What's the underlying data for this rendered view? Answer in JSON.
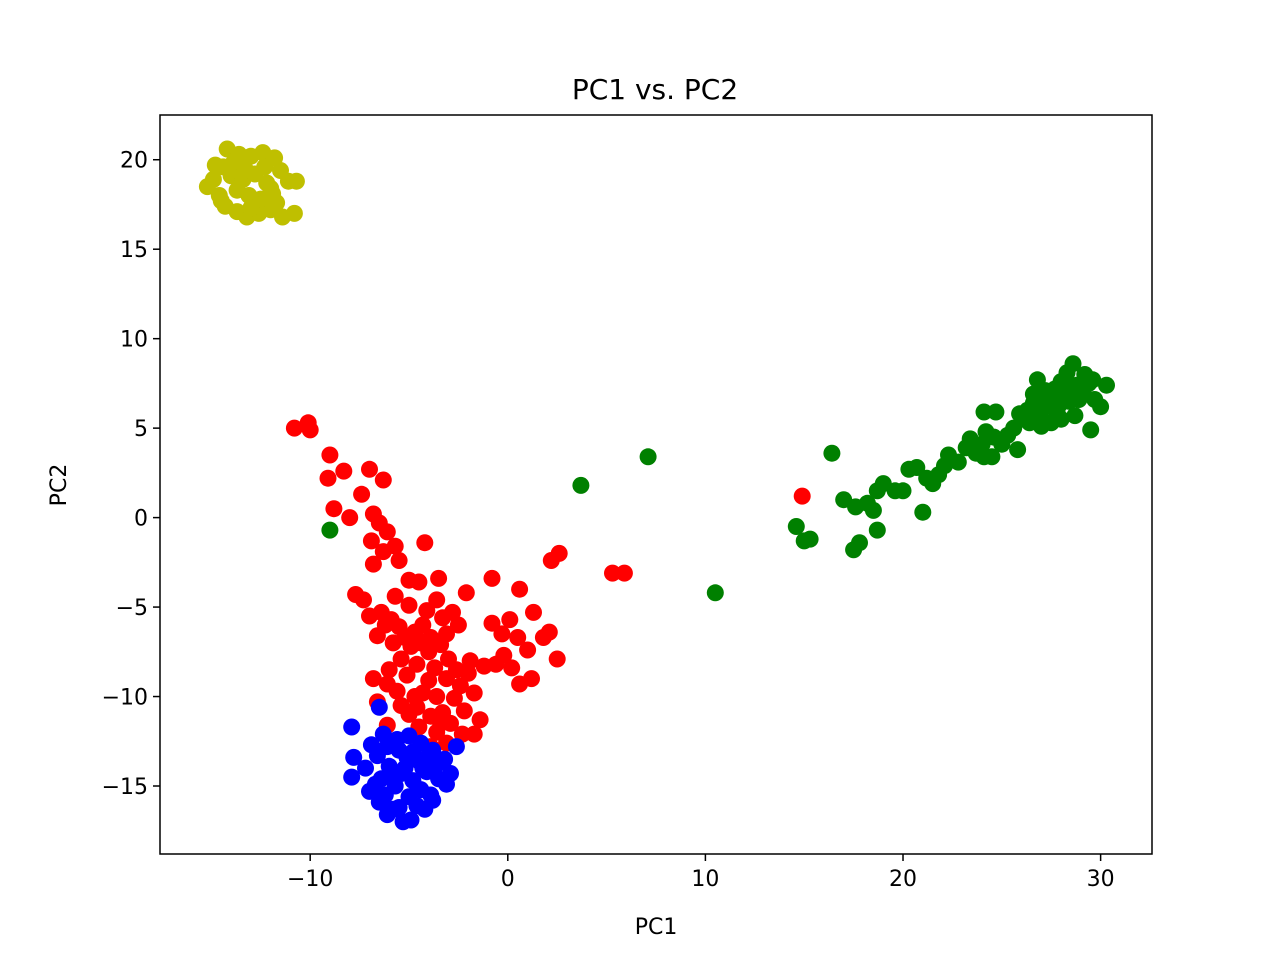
{
  "chart_data": {
    "type": "scatter",
    "title": "PC1 vs. PC2",
    "xlabel": "PC1",
    "ylabel": "PC2",
    "xlim": [
      -17.6,
      32.6
    ],
    "ylim": [
      -18.8,
      22.5
    ],
    "xticks": [
      -10,
      0,
      10,
      20,
      30
    ],
    "yticks": [
      -15,
      -10,
      -5,
      0,
      5,
      10,
      15,
      20
    ],
    "xtick_labels": [
      "−10",
      "0",
      "10",
      "20",
      "30"
    ],
    "ytick_labels": [
      "−15",
      "−10",
      "−5",
      "0",
      "5",
      "10",
      "15",
      "20"
    ],
    "grid": false,
    "series": [
      {
        "color": "#ff0000",
        "points": [
          [
            -10.8,
            5.0
          ],
          [
            -10.1,
            5.3
          ],
          [
            -10.0,
            4.9
          ],
          [
            -9.0,
            3.5
          ],
          [
            -9.1,
            2.2
          ],
          [
            -8.8,
            0.5
          ],
          [
            -8.3,
            2.6
          ],
          [
            -8.0,
            0.0
          ],
          [
            -7.4,
            1.3
          ],
          [
            -7.0,
            2.7
          ],
          [
            -6.3,
            2.1
          ],
          [
            -6.8,
            0.2
          ],
          [
            -6.5,
            -0.3
          ],
          [
            -6.9,
            -1.3
          ],
          [
            -6.1,
            -0.8
          ],
          [
            -5.7,
            -1.6
          ],
          [
            -6.3,
            -1.9
          ],
          [
            -5.5,
            -2.4
          ],
          [
            -6.8,
            -2.6
          ],
          [
            -4.2,
            -1.4
          ],
          [
            -5.0,
            -3.5
          ],
          [
            -4.5,
            -3.6
          ],
          [
            -3.5,
            -3.4
          ],
          [
            -3.6,
            -4.6
          ],
          [
            -2.1,
            -4.2
          ],
          [
            -7.7,
            -4.3
          ],
          [
            -7.3,
            -4.6
          ],
          [
            -7.0,
            -5.5
          ],
          [
            -6.4,
            -5.3
          ],
          [
            -5.7,
            -4.4
          ],
          [
            -5.0,
            -4.9
          ],
          [
            -4.1,
            -5.2
          ],
          [
            -3.3,
            -5.6
          ],
          [
            -2.8,
            -5.3
          ],
          [
            -6.2,
            -6.0
          ],
          [
            -5.5,
            -6.1
          ],
          [
            -4.7,
            -6.4
          ],
          [
            -4.3,
            -6.0
          ],
          [
            -3.9,
            -6.7
          ],
          [
            -3.1,
            -6.5
          ],
          [
            -2.5,
            -6.0
          ],
          [
            -6.6,
            -6.6
          ],
          [
            -5.8,
            -7.0
          ],
          [
            -4.9,
            -7.2
          ],
          [
            -4.0,
            -7.5
          ],
          [
            -3.4,
            -7.1
          ],
          [
            -5.4,
            -7.9
          ],
          [
            -4.6,
            -8.2
          ],
          [
            -3.7,
            -8.4
          ],
          [
            -2.6,
            -8.5
          ],
          [
            -1.9,
            -8.0
          ],
          [
            -1.2,
            -8.3
          ],
          [
            -5.1,
            -8.8
          ],
          [
            -4.0,
            -9.1
          ],
          [
            -3.1,
            -9.0
          ],
          [
            -2.4,
            -9.4
          ],
          [
            -6.8,
            -9.0
          ],
          [
            -6.1,
            -9.3
          ],
          [
            -5.6,
            -9.7
          ],
          [
            -4.3,
            -9.8
          ],
          [
            -3.6,
            -10.0
          ],
          [
            -2.7,
            -10.1
          ],
          [
            -1.7,
            -9.8
          ],
          [
            -6.6,
            -10.3
          ],
          [
            -5.4,
            -10.5
          ],
          [
            -4.6,
            -10.6
          ],
          [
            -3.3,
            -10.9
          ],
          [
            -2.2,
            -10.8
          ],
          [
            -5.0,
            -11.0
          ],
          [
            -3.9,
            -11.1
          ],
          [
            -2.9,
            -11.5
          ],
          [
            -1.4,
            -11.3
          ],
          [
            -4.5,
            -11.7
          ],
          [
            -3.6,
            -12.0
          ],
          [
            -2.3,
            -12.1
          ],
          [
            -6.1,
            -11.6
          ],
          [
            -3.9,
            -12.8
          ],
          [
            -1.7,
            -12.1
          ],
          [
            -3.1,
            -12.6
          ],
          [
            -0.8,
            -5.9
          ],
          [
            -0.3,
            -6.5
          ],
          [
            0.1,
            -5.7
          ],
          [
            0.5,
            -6.7
          ],
          [
            1.0,
            -7.4
          ],
          [
            1.8,
            -6.7
          ],
          [
            2.1,
            -6.4
          ],
          [
            2.5,
            -7.9
          ],
          [
            1.3,
            -5.3
          ],
          [
            0.6,
            -4.0
          ],
          [
            -0.8,
            -3.4
          ],
          [
            -0.6,
            -8.2
          ],
          [
            0.2,
            -8.4
          ],
          [
            0.6,
            -9.3
          ],
          [
            1.2,
            -9.0
          ],
          [
            -0.2,
            -7.7
          ],
          [
            2.2,
            -2.4
          ],
          [
            2.6,
            -2.0
          ],
          [
            5.3,
            -3.1
          ],
          [
            5.9,
            -3.1
          ],
          [
            14.9,
            1.2
          ],
          [
            -5.9,
            -5.7
          ],
          [
            -5.2,
            -6.7
          ],
          [
            -4.4,
            -7.0
          ],
          [
            -6.0,
            -8.5
          ],
          [
            -3.0,
            -7.9
          ],
          [
            -2.0,
            -8.7
          ],
          [
            -4.7,
            -10.0
          ],
          [
            -3.4,
            -11.5
          ]
        ]
      },
      {
        "color": "#0000ff",
        "points": [
          [
            -7.9,
            -11.7
          ],
          [
            -6.5,
            -10.6
          ],
          [
            -7.8,
            -13.4
          ],
          [
            -7.9,
            -14.5
          ],
          [
            -7.2,
            -14.0
          ],
          [
            -7.0,
            -15.3
          ],
          [
            -6.5,
            -15.9
          ],
          [
            -6.1,
            -16.6
          ],
          [
            -5.5,
            -16.2
          ],
          [
            -4.9,
            -16.9
          ],
          [
            -4.2,
            -16.3
          ],
          [
            -3.9,
            -15.5
          ],
          [
            -3.1,
            -14.9
          ],
          [
            -2.9,
            -14.3
          ],
          [
            -2.6,
            -12.8
          ],
          [
            -3.2,
            -13.5
          ],
          [
            -3.8,
            -13.0
          ],
          [
            -4.4,
            -12.6
          ],
          [
            -5.0,
            -12.2
          ],
          [
            -5.6,
            -12.4
          ],
          [
            -6.1,
            -12.8
          ],
          [
            -6.6,
            -13.3
          ],
          [
            -6.0,
            -13.9
          ],
          [
            -5.4,
            -14.3
          ],
          [
            -4.8,
            -14.7
          ],
          [
            -4.1,
            -14.2
          ],
          [
            -3.6,
            -13.8
          ],
          [
            -5.1,
            -13.4
          ],
          [
            -4.5,
            -13.6
          ],
          [
            -5.7,
            -15.0
          ],
          [
            -5.0,
            -15.6
          ],
          [
            -4.4,
            -15.2
          ],
          [
            -6.4,
            -14.6
          ],
          [
            -5.9,
            -14.2
          ],
          [
            -4.6,
            -16.1
          ],
          [
            -3.5,
            -14.6
          ],
          [
            -6.9,
            -12.7
          ],
          [
            -6.3,
            -12.1
          ],
          [
            -5.3,
            -17.0
          ],
          [
            -4.0,
            -13.3
          ],
          [
            -6.7,
            -14.9
          ],
          [
            -5.5,
            -13.0
          ],
          [
            -4.8,
            -13.1
          ],
          [
            -3.8,
            -15.8
          ],
          [
            -6.2,
            -15.5
          ],
          [
            -5.2,
            -14.0
          ],
          [
            -4.3,
            -14.0
          ],
          [
            -5.8,
            -16.3
          ]
        ]
      },
      {
        "color": "#bfbf00",
        "points": [
          [
            -15.2,
            18.5
          ],
          [
            -14.8,
            19.7
          ],
          [
            -14.2,
            20.6
          ],
          [
            -13.6,
            20.3
          ],
          [
            -13.0,
            20.2
          ],
          [
            -12.4,
            20.4
          ],
          [
            -11.8,
            20.1
          ],
          [
            -14.6,
            18.0
          ],
          [
            -14.3,
            17.4
          ],
          [
            -13.7,
            17.1
          ],
          [
            -13.2,
            16.8
          ],
          [
            -12.6,
            17.0
          ],
          [
            -12.0,
            17.2
          ],
          [
            -11.4,
            16.8
          ],
          [
            -10.8,
            17.0
          ],
          [
            -11.1,
            18.8
          ],
          [
            -10.7,
            18.8
          ],
          [
            -11.5,
            19.4
          ],
          [
            -14.0,
            19.1
          ],
          [
            -13.4,
            18.9
          ],
          [
            -12.8,
            19.2
          ],
          [
            -12.2,
            18.7
          ],
          [
            -13.7,
            18.3
          ],
          [
            -13.1,
            18.0
          ],
          [
            -12.5,
            17.8
          ],
          [
            -11.9,
            18.1
          ],
          [
            -14.9,
            18.9
          ],
          [
            -13.9,
            19.8
          ],
          [
            -12.9,
            17.6
          ],
          [
            -11.7,
            17.6
          ],
          [
            -14.4,
            19.6
          ],
          [
            -12.3,
            19.6
          ],
          [
            -13.3,
            19.5
          ],
          [
            -12.0,
            18.4
          ],
          [
            -14.5,
            17.7
          ],
          [
            -13.0,
            17.3
          ]
        ]
      },
      {
        "color": "#008000",
        "points": [
          [
            -9.0,
            -0.7
          ],
          [
            3.7,
            1.8
          ],
          [
            7.1,
            3.4
          ],
          [
            10.5,
            -4.2
          ],
          [
            14.6,
            -0.5
          ],
          [
            15.0,
            -1.3
          ],
          [
            15.3,
            -1.2
          ],
          [
            16.4,
            3.6
          ],
          [
            17.0,
            1.0
          ],
          [
            17.6,
            0.6
          ],
          [
            17.5,
            -1.8
          ],
          [
            17.8,
            -1.4
          ],
          [
            18.2,
            0.8
          ],
          [
            18.5,
            0.4
          ],
          [
            18.7,
            -0.7
          ],
          [
            18.7,
            1.5
          ],
          [
            19.0,
            1.9
          ],
          [
            19.6,
            1.5
          ],
          [
            20.0,
            1.5
          ],
          [
            20.3,
            2.7
          ],
          [
            20.7,
            2.8
          ],
          [
            21.0,
            0.3
          ],
          [
            21.2,
            2.2
          ],
          [
            21.5,
            1.9
          ],
          [
            21.8,
            2.4
          ],
          [
            22.1,
            2.9
          ],
          [
            22.3,
            3.5
          ],
          [
            22.8,
            3.1
          ],
          [
            23.2,
            3.9
          ],
          [
            23.4,
            4.4
          ],
          [
            23.7,
            3.6
          ],
          [
            24.0,
            4.1
          ],
          [
            24.2,
            4.8
          ],
          [
            24.6,
            4.5
          ],
          [
            24.1,
            3.4
          ],
          [
            24.5,
            3.4
          ],
          [
            25.0,
            4.1
          ],
          [
            25.3,
            4.6
          ],
          [
            25.6,
            5.0
          ],
          [
            25.8,
            3.8
          ],
          [
            26.1,
            5.5
          ],
          [
            26.3,
            6.0
          ],
          [
            26.6,
            6.4
          ],
          [
            26.9,
            5.6
          ],
          [
            27.1,
            6.1
          ],
          [
            27.4,
            6.6
          ],
          [
            27.7,
            7.2
          ],
          [
            28.0,
            7.6
          ],
          [
            28.3,
            8.1
          ],
          [
            28.6,
            8.6
          ],
          [
            28.8,
            7.4
          ],
          [
            29.1,
            7.0
          ],
          [
            29.4,
            7.5
          ],
          [
            29.7,
            6.6
          ],
          [
            30.0,
            6.2
          ],
          [
            30.3,
            7.4
          ],
          [
            29.5,
            4.9
          ],
          [
            24.1,
            5.9
          ],
          [
            24.7,
            5.9
          ],
          [
            26.8,
            7.7
          ],
          [
            27.2,
            7.1
          ],
          [
            27.6,
            6.8
          ],
          [
            27.9,
            6.3
          ],
          [
            28.2,
            6.9
          ],
          [
            28.5,
            7.3
          ],
          [
            28.9,
            6.6
          ],
          [
            29.2,
            8.0
          ],
          [
            26.4,
            5.3
          ],
          [
            27.0,
            5.1
          ],
          [
            27.5,
            5.3
          ],
          [
            28.0,
            5.5
          ],
          [
            28.7,
            5.7
          ],
          [
            29.6,
            7.7
          ],
          [
            26.6,
            6.9
          ],
          [
            27.3,
            6.4
          ],
          [
            28.4,
            6.5
          ],
          [
            25.9,
            5.8
          ],
          [
            27.8,
            5.9
          ]
        ]
      }
    ]
  }
}
